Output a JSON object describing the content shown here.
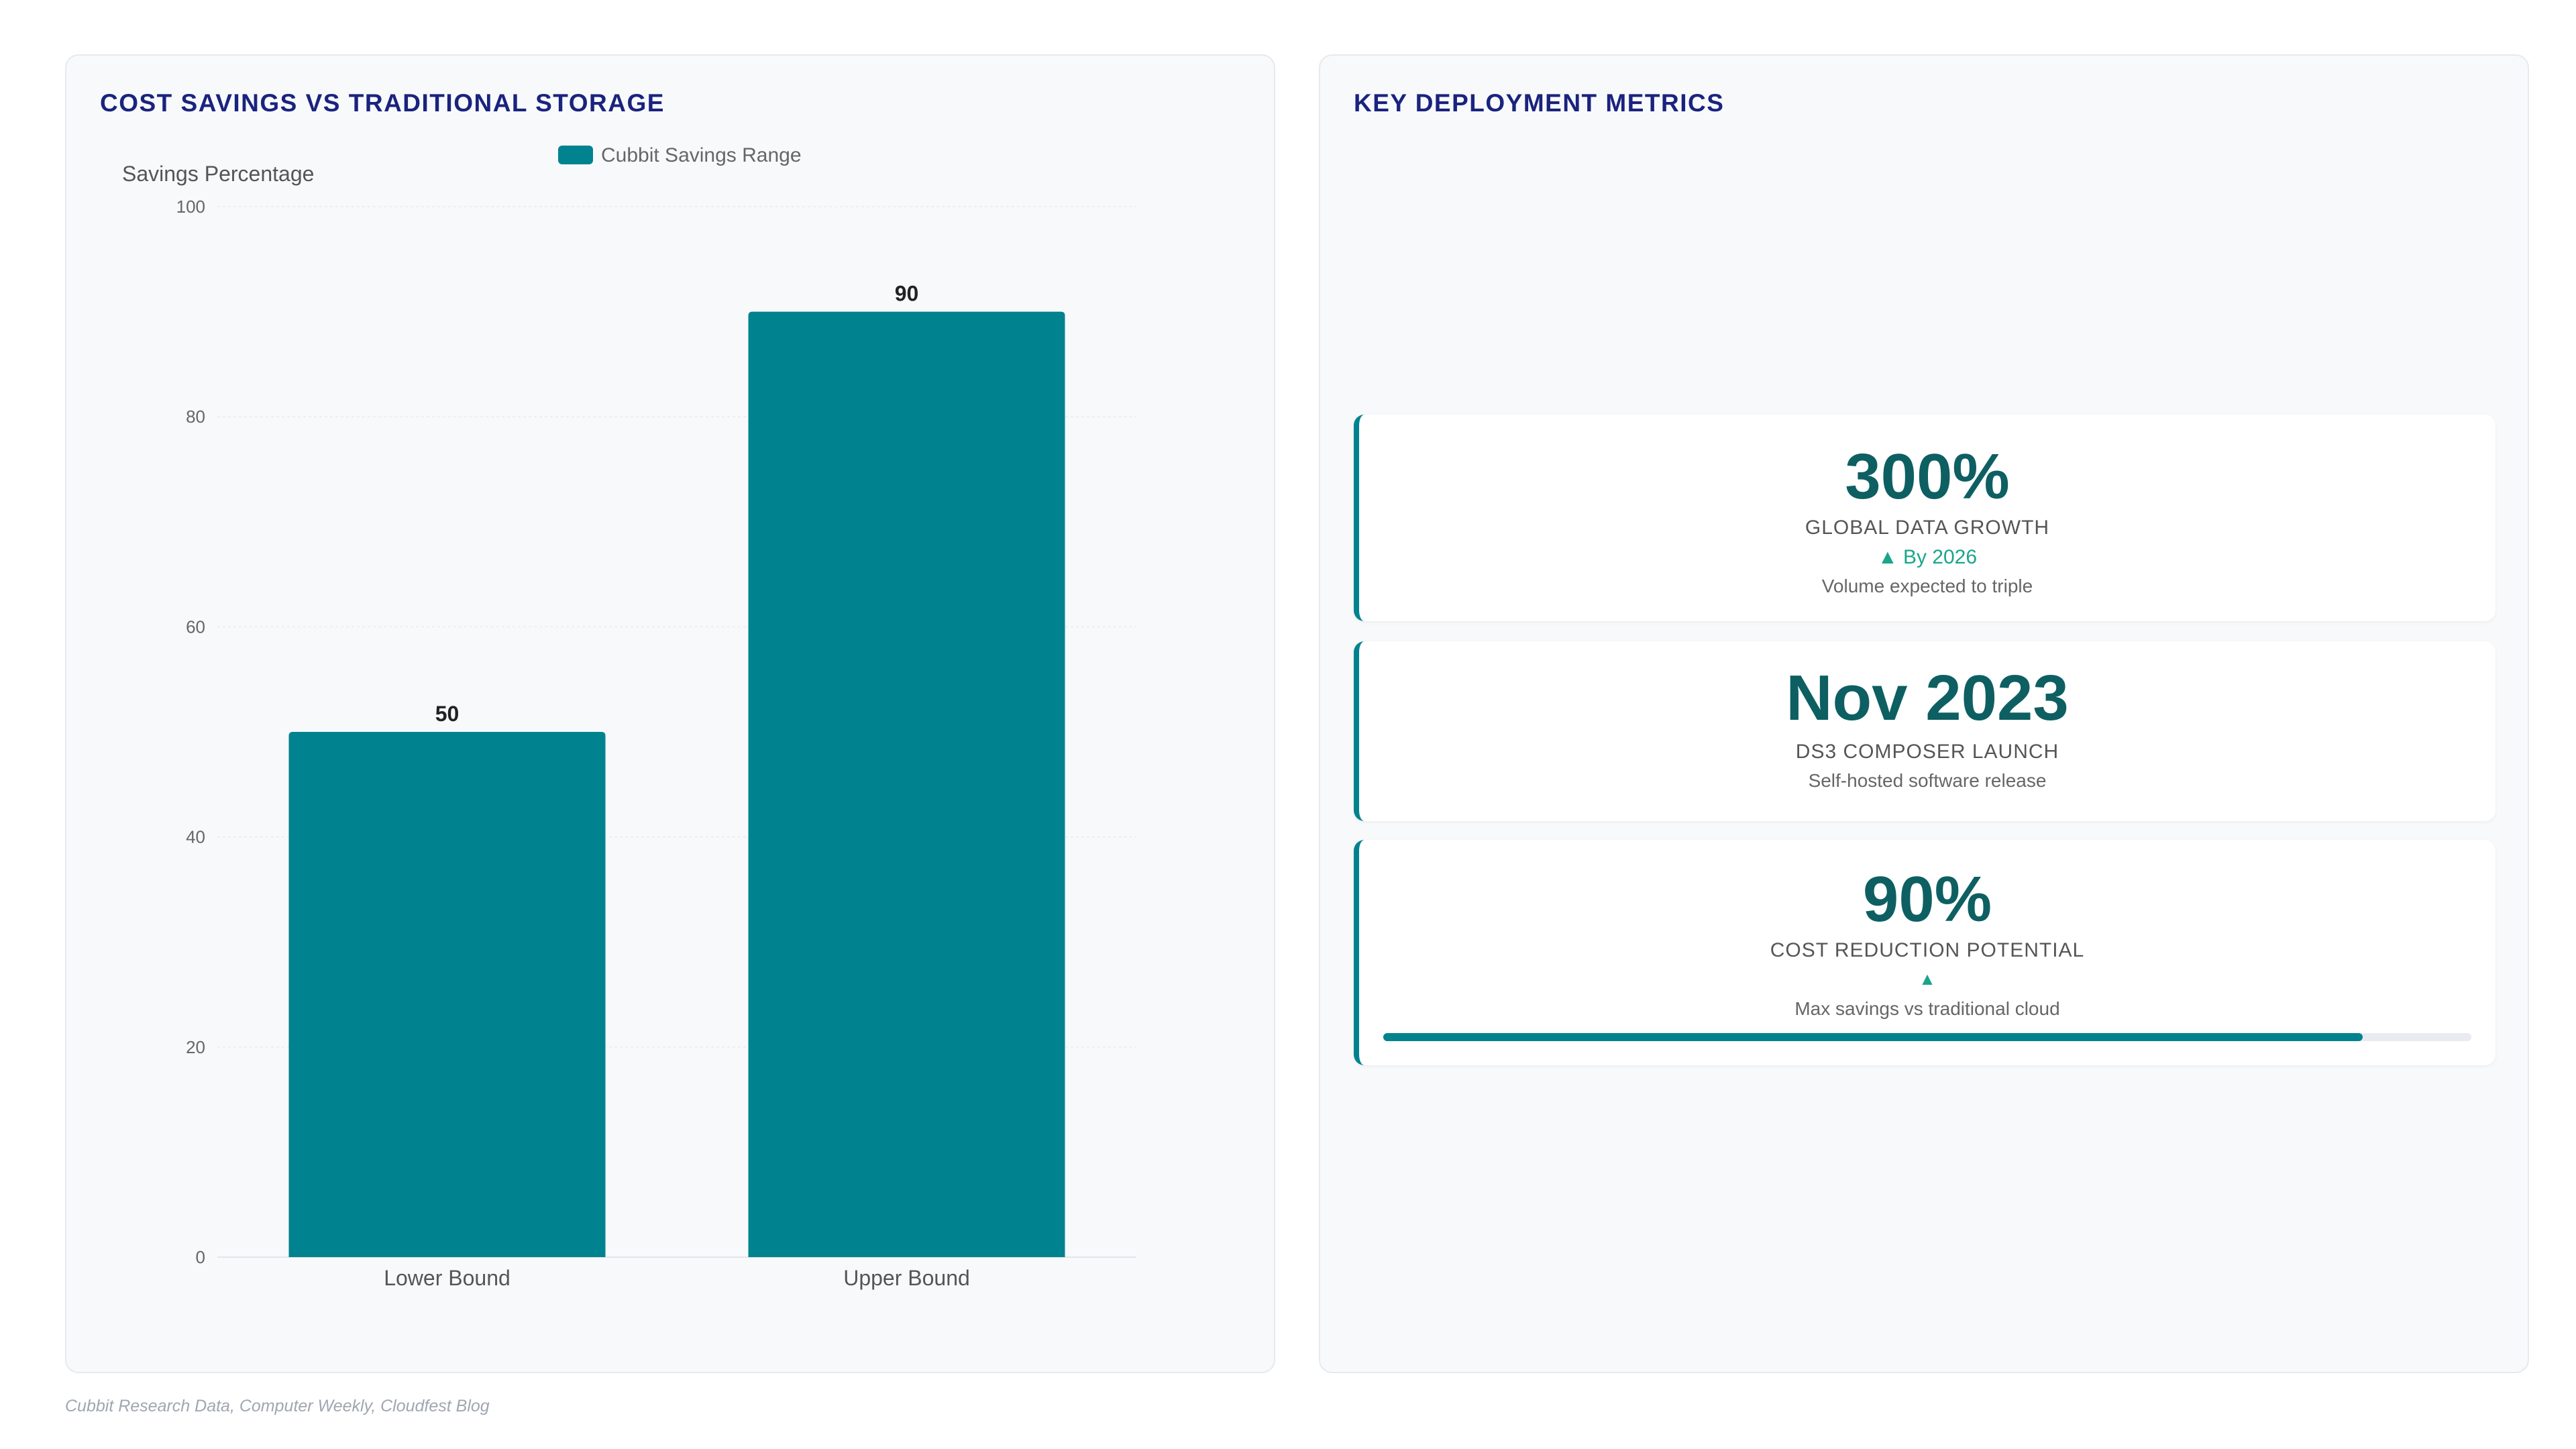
{
  "chart_data": {
    "type": "bar",
    "title": "COST SAVINGS VS TRADITIONAL STORAGE",
    "categories": [
      "Lower Bound",
      "Upper Bound"
    ],
    "series": [
      {
        "name": "Cubbit Savings Range",
        "values": [
          50,
          90
        ]
      }
    ],
    "ylabel": "Savings Percentage",
    "xlabel": "",
    "ylim": [
      0,
      100
    ],
    "yticks": [
      0,
      20,
      40,
      60,
      80,
      100
    ],
    "grid": true,
    "legend": "top-center",
    "data_labels": true,
    "color": "#00838f"
  },
  "metrics_panel": {
    "title": "KEY DEPLOYMENT METRICS",
    "cards": [
      {
        "value": "300%",
        "label": "GLOBAL DATA GROWTH",
        "trend": "▲ By 2026",
        "description": "Volume expected to triple"
      },
      {
        "value": "Nov 2023",
        "label": "DS3 COMPOSER LAUNCH",
        "description": "Self-hosted software release"
      },
      {
        "value": "90%",
        "label": "COST REDUCTION POTENTIAL",
        "trend": "▲",
        "description": "Max savings vs traditional cloud",
        "progress_percent": 90
      }
    ]
  },
  "source": "Cubbit Research Data, Computer Weekly, Cloudfest Blog",
  "colors": {
    "accent": "#00838f",
    "title": "#1a237e",
    "metric_value": "#0d5f62",
    "trend": "#1aa58a"
  }
}
